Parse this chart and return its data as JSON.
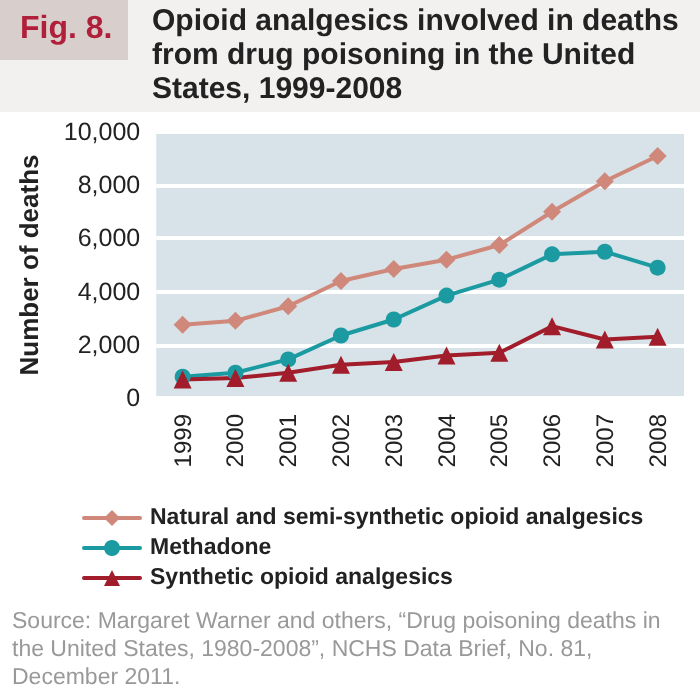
{
  "chart_data": {
    "type": "line",
    "title": "Opioid analgesics involved in deaths from drug poisoning in the United States, 1999-2008",
    "ylabel": "Number of deaths",
    "categories": [
      "1999",
      "2000",
      "2001",
      "2002",
      "2003",
      "2004",
      "2005",
      "2006",
      "2007",
      "2008"
    ],
    "series": [
      {
        "name": "Natural and semi-synthetic opioid analgesics",
        "color": "#d0887a",
        "marker": "diamond",
        "values": [
          2750,
          2900,
          3450,
          4400,
          4850,
          5200,
          5750,
          7000,
          8150,
          9100
        ]
      },
      {
        "name": "Methadone",
        "color": "#1b9aa2",
        "marker": "circle",
        "values": [
          800,
          950,
          1450,
          2350,
          2950,
          3850,
          4450,
          5400,
          5500,
          4900
        ]
      },
      {
        "name": "Synthetic opioid analgesics",
        "color": "#a11d2b",
        "marker": "triangle",
        "values": [
          700,
          750,
          950,
          1250,
          1350,
          1600,
          1700,
          2700,
          2200,
          2300
        ]
      }
    ],
    "ylim": [
      0,
      10000
    ],
    "yticks": [
      0,
      {
        "value": 2000,
        "label": "2,000"
      },
      {
        "value": 4000,
        "label": "4,000"
      },
      {
        "value": 6000,
        "label": "6,000"
      },
      {
        "value": 8000,
        "label": "8,000"
      },
      {
        "value": 10000,
        "label": "10,000"
      }
    ],
    "grid": "y",
    "legend": "bottom",
    "annotations": [
      "Fig. 8.",
      "Source: Margaret Warner and others, “Drug poisoning deaths in the United States, 1980-2008”, NCHS Data Brief, No. 81, December 2011."
    ]
  }
}
